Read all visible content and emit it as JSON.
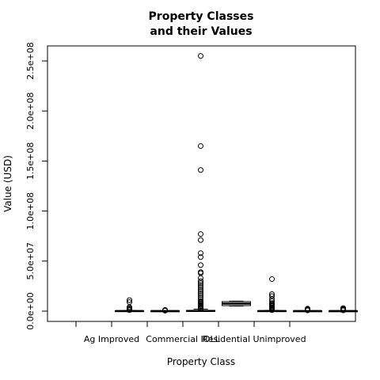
{
  "chart_data": {
    "type": "boxplot",
    "title": [
      "Property Classes",
      "and their Values"
    ],
    "xlabel": "Property Class",
    "ylabel": "Value (USD)",
    "ylim": [
      -9000000,
      259000000
    ],
    "yticks": [
      0,
      50000000,
      100000000,
      150000000,
      200000000,
      250000000
    ],
    "ytick_labels": [
      "0.0e+00",
      "5.0e+07",
      "1.0e+08",
      "1.5e+08",
      "2.0e+08",
      "2.5e+08"
    ],
    "categories": [
      "",
      "Ag Improved",
      "",
      "Commercial IOLL",
      "",
      "Residential Unimproved",
      ""
    ],
    "xtick_labels_shown": [
      "Ag Improved",
      "Commercial IOLL",
      "Residential Unimproved"
    ],
    "boxes": [
      null,
      {
        "q1": 0,
        "median": 100000,
        "q3": 300000,
        "whisker_low": 0,
        "whisker_high": 600000,
        "outliers": [
          11000000,
          9000000,
          4000000,
          3000000,
          2000000,
          1500000,
          1000000
        ]
      },
      {
        "q1": 0,
        "median": 50000,
        "q3": 150000,
        "whisker_low": 0,
        "whisker_high": 400000,
        "outliers": [
          1200000,
          900000,
          700000,
          500000
        ]
      },
      {
        "q1": 0,
        "median": 200000,
        "q3": 700000,
        "whisker_low": 0,
        "whisker_high": 2000000,
        "outliers": [
          255000000,
          165000000,
          141000000,
          77000000,
          71000000,
          58000000,
          54000000,
          46000000,
          39000000,
          38000000,
          33000000,
          30000000,
          28000000,
          26000000,
          24000000,
          22000000,
          20000000,
          18000000,
          16000000,
          14000000,
          12000000,
          10000000,
          9000000,
          8000000,
          7000000,
          6000000,
          5000000,
          4000000,
          3000000,
          2500000
        ]
      },
      {
        "q1": 5500000,
        "median": 7500000,
        "q3": 9500000,
        "whisker_low": 5000000,
        "whisker_high": 10000000,
        "outliers": []
      },
      {
        "q1": 0,
        "median": 100000,
        "q3": 300000,
        "whisker_low": 0,
        "whisker_high": 700000,
        "outliers": [
          32000000,
          17000000,
          15000000,
          12000000,
          10000000,
          8000000,
          7000000,
          6000000,
          5000000,
          4000000,
          3500000,
          3000000,
          2500000,
          2000000,
          1500000,
          1000000
        ]
      },
      {
        "q1": 0,
        "median": 50000,
        "q3": 150000,
        "whisker_low": 0,
        "whisker_high": 350000,
        "outliers": [
          2500000,
          2000000,
          1500000,
          1200000,
          1000000,
          800000
        ]
      },
      {
        "q1": 0,
        "median": 50000,
        "q3": 150000,
        "whisker_low": 0,
        "whisker_high": 350000,
        "outliers": [
          3000000,
          2500000,
          2000000,
          1500000,
          1200000,
          1000000,
          800000
        ]
      }
    ],
    "grid": false,
    "legend": "none"
  }
}
